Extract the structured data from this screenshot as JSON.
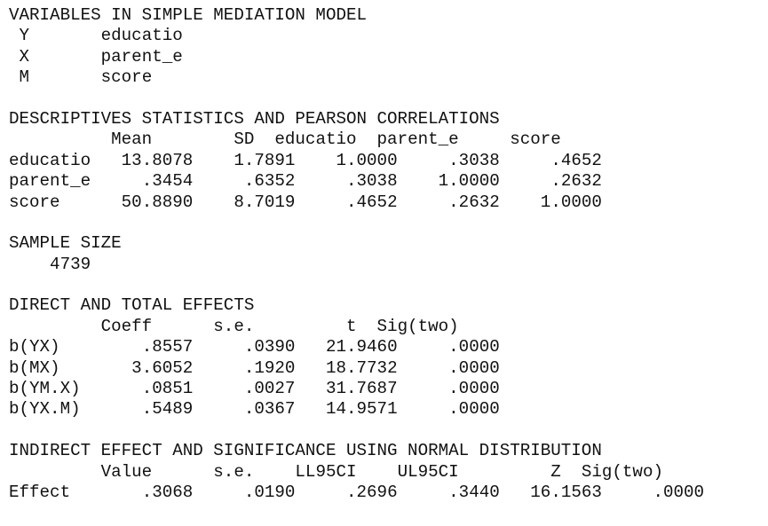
{
  "variables": {
    "heading": "VARIABLES IN SIMPLE MEDIATION MODEL",
    "rows": [
      {
        "role": "Y",
        "name": "educatio"
      },
      {
        "role": "X",
        "name": "parent_e"
      },
      {
        "role": "M",
        "name": "score"
      }
    ]
  },
  "descriptives": {
    "heading": "DESCRIPTIVES STATISTICS AND PEARSON CORRELATIONS",
    "columns": [
      "Mean",
      "SD",
      "educatio",
      "parent_e",
      "score"
    ],
    "rows": [
      {
        "label": "educatio",
        "values": [
          "13.8078",
          "1.7891",
          "1.0000",
          ".3038",
          ".4652"
        ]
      },
      {
        "label": "parent_e",
        "values": [
          ".3454",
          ".6352",
          ".3038",
          "1.0000",
          ".2632"
        ]
      },
      {
        "label": "score",
        "values": [
          "50.8890",
          "8.7019",
          ".4652",
          ".2632",
          "1.0000"
        ]
      }
    ]
  },
  "sample": {
    "heading": "SAMPLE SIZE",
    "value": "4739"
  },
  "effects": {
    "heading": "DIRECT AND TOTAL EFFECTS",
    "columns": [
      "Coeff",
      "s.e.",
      "t",
      "Sig(two)"
    ],
    "rows": [
      {
        "label": "b(YX)",
        "values": [
          ".8557",
          ".0390",
          "21.9460",
          ".0000"
        ]
      },
      {
        "label": "b(MX)",
        "values": [
          "3.6052",
          ".1920",
          "18.7732",
          ".0000"
        ]
      },
      {
        "label": "b(YM.X)",
        "values": [
          ".0851",
          ".0027",
          "31.7687",
          ".0000"
        ]
      },
      {
        "label": "b(YX.M)",
        "values": [
          ".5489",
          ".0367",
          "14.9571",
          ".0000"
        ]
      }
    ]
  },
  "indirect": {
    "heading": "INDIRECT EFFECT AND SIGNIFICANCE USING NORMAL DISTRIBUTION",
    "columns": [
      "Value",
      "s.e.",
      "LL95CI",
      "UL95CI",
      "Z",
      "Sig(two)"
    ],
    "rows": [
      {
        "label": "Effect",
        "values": [
          ".3068",
          ".0190",
          ".2696",
          ".3440",
          "16.1563",
          ".0000"
        ]
      }
    ]
  }
}
